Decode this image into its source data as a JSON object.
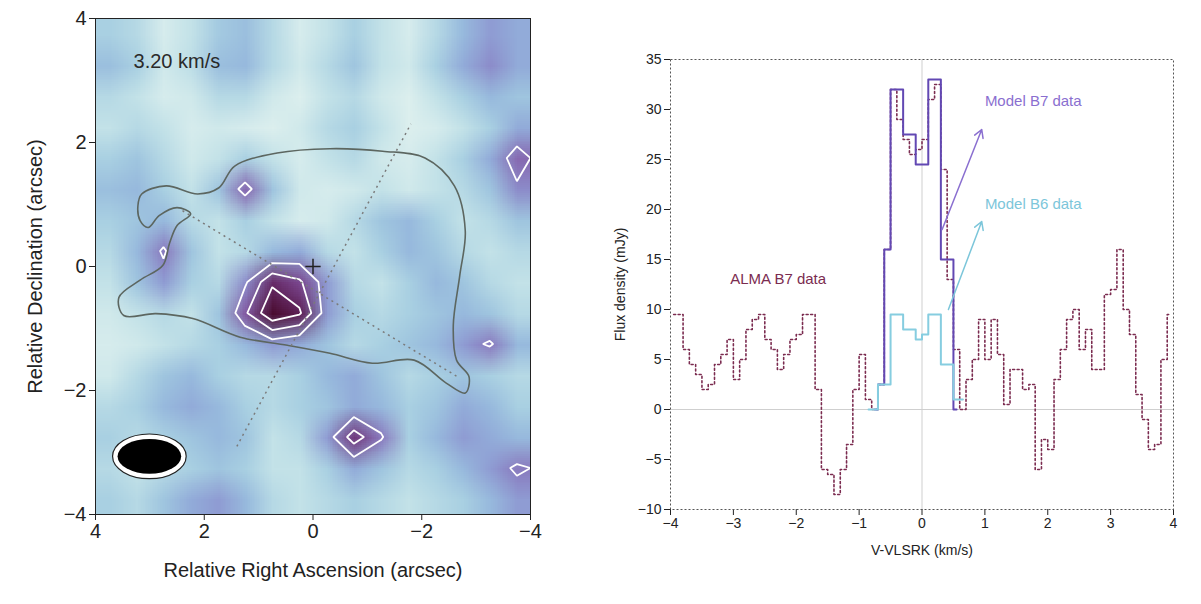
{
  "chart_data": [
    {
      "type": "heatmap",
      "x_label": "Relative Right Ascension (arcsec)",
      "y_label": "Relative Declination (arcsec)",
      "xlim": [
        4,
        -4
      ],
      "ylim": [
        -4,
        4
      ],
      "xticks": [
        4,
        2,
        0,
        -2,
        -4
      ],
      "yticks": [
        -4,
        -2,
        0,
        2,
        4
      ],
      "annotations": [
        {
          "text": "3.20 km/s",
          "x": 3.3,
          "y": 3.3,
          "color": "#2a2a2a"
        }
      ],
      "map": {
        "width": 16,
        "height": 16,
        "x": [
          4,
          -4
        ],
        "y": [
          4,
          -4
        ],
        "range": [
          0,
          4
        ],
        "values": [
          [
            1.2,
            1.0,
            0.5,
            0.8,
            1.3,
            1.5,
            1.0,
            0.5,
            0.8,
            1.2,
            0.8,
            0.5,
            1.0,
            1.6,
            2.0,
            1.8
          ],
          [
            1.5,
            1.2,
            0.6,
            0.9,
            1.5,
            1.6,
            1.0,
            0.6,
            1.0,
            1.4,
            0.8,
            0.6,
            1.2,
            1.8,
            2.2,
            1.8
          ],
          [
            1.0,
            0.8,
            0.5,
            0.6,
            1.0,
            1.0,
            0.6,
            0.4,
            0.8,
            1.0,
            0.6,
            0.4,
            0.8,
            1.2,
            1.6,
            1.4
          ],
          [
            0.8,
            1.0,
            0.8,
            0.5,
            0.6,
            0.5,
            0.4,
            0.6,
            1.0,
            1.2,
            0.8,
            0.4,
            0.5,
            0.8,
            1.2,
            1.8
          ],
          [
            1.2,
            1.4,
            1.0,
            0.6,
            0.8,
            1.2,
            0.8,
            0.5,
            0.8,
            1.0,
            0.6,
            0.5,
            0.8,
            1.2,
            1.8,
            2.6
          ],
          [
            1.5,
            1.6,
            1.2,
            0.8,
            1.4,
            2.6,
            1.4,
            0.6,
            0.5,
            0.6,
            0.8,
            0.6,
            0.8,
            1.0,
            1.4,
            2.2
          ],
          [
            1.2,
            1.4,
            1.6,
            1.0,
            0.8,
            1.2,
            0.8,
            0.5,
            0.6,
            1.0,
            1.4,
            1.6,
            1.2,
            0.8,
            1.0,
            1.4
          ],
          [
            1.0,
            1.6,
            2.4,
            1.4,
            0.8,
            1.0,
            1.6,
            1.8,
            1.0,
            0.8,
            1.2,
            1.6,
            1.4,
            1.0,
            0.8,
            1.0
          ],
          [
            0.8,
            1.4,
            2.0,
            1.2,
            1.0,
            2.2,
            3.4,
            3.0,
            2.0,
            1.0,
            0.8,
            1.2,
            1.6,
            1.4,
            1.0,
            0.8
          ],
          [
            0.6,
            0.8,
            1.0,
            0.8,
            1.4,
            2.8,
            4.0,
            3.6,
            2.0,
            1.2,
            1.0,
            1.2,
            1.4,
            1.6,
            1.4,
            1.0
          ],
          [
            0.5,
            0.6,
            0.8,
            1.0,
            1.2,
            1.6,
            2.0,
            1.8,
            1.4,
            1.0,
            1.2,
            1.4,
            1.6,
            2.0,
            2.4,
            1.6
          ],
          [
            0.6,
            1.0,
            1.4,
            1.6,
            1.2,
            1.0,
            1.0,
            1.2,
            1.6,
            1.8,
            1.4,
            1.0,
            1.2,
            1.4,
            1.2,
            1.0
          ],
          [
            1.0,
            1.2,
            1.6,
            1.8,
            1.6,
            1.2,
            1.0,
            1.2,
            1.4,
            1.8,
            1.6,
            1.2,
            1.4,
            1.8,
            1.6,
            1.2
          ],
          [
            1.2,
            1.0,
            1.2,
            1.4,
            1.6,
            1.4,
            0.8,
            1.0,
            2.0,
            3.2,
            2.4,
            1.2,
            1.6,
            2.0,
            1.8,
            1.6
          ],
          [
            1.0,
            0.8,
            1.0,
            1.2,
            1.4,
            1.2,
            0.8,
            0.8,
            1.2,
            1.8,
            1.4,
            1.0,
            1.2,
            1.6,
            2.0,
            2.4
          ],
          [
            1.2,
            1.0,
            1.4,
            1.8,
            2.0,
            1.6,
            1.0,
            0.8,
            1.0,
            1.2,
            1.0,
            0.8,
            1.0,
            1.2,
            1.6,
            2.0
          ]
        ]
      },
      "contour_levels": [
        2.3,
        2.9,
        3.5
      ],
      "outline": [
        [
          3.18,
          0.74
        ],
        [
          3.22,
          0.98
        ],
        [
          3.15,
          1.17
        ],
        [
          2.7,
          1.3
        ],
        [
          2.12,
          1.17
        ],
        [
          1.73,
          1.27
        ],
        [
          1.44,
          1.62
        ],
        [
          0.66,
          1.83
        ],
        [
          -0.31,
          1.9
        ],
        [
          -1.28,
          1.86
        ],
        [
          -2.06,
          1.75
        ],
        [
          -2.6,
          1.3
        ],
        [
          -2.8,
          0.58
        ],
        [
          -2.7,
          -0.14
        ],
        [
          -2.58,
          -0.95
        ],
        [
          -2.64,
          -1.51
        ],
        [
          -2.87,
          -1.78
        ],
        [
          -2.8,
          -2.04
        ],
        [
          -2.45,
          -1.88
        ],
        [
          -1.86,
          -1.51
        ],
        [
          -1.09,
          -1.56
        ],
        [
          -0.31,
          -1.4
        ],
        [
          0.47,
          -1.27
        ],
        [
          1.34,
          -1.14
        ],
        [
          2.21,
          -0.84
        ],
        [
          2.89,
          -0.76
        ],
        [
          3.48,
          -0.79
        ],
        [
          3.57,
          -0.5
        ],
        [
          3.18,
          -0.22
        ],
        [
          2.76,
          0.02
        ],
        [
          2.64,
          0.37
        ],
        [
          2.5,
          0.66
        ],
        [
          2.25,
          0.85
        ],
        [
          2.5,
          0.95
        ],
        [
          2.83,
          0.82
        ],
        [
          3.03,
          0.63
        ]
      ],
      "axis_lines": [
        [
          [
            1.4,
            -2.9
          ],
          [
            -1.8,
            2.3
          ]
        ],
        [
          [
            2.4,
            0.9
          ],
          [
            -2.7,
            -1.8
          ]
        ]
      ],
      "center": [
        0,
        0
      ],
      "beam": {
        "x": 3.0,
        "y": -3.07,
        "major": 1.17,
        "minor": 0.56
      }
    },
    {
      "type": "line",
      "x_label": "V-VLSRK (km/s)",
      "y_label": "Flux density (mJy)",
      "xlim": [
        -4,
        4
      ],
      "ylim": [
        -10,
        35
      ],
      "xticks": [
        -4,
        -3,
        -2,
        -1,
        0,
        1,
        2,
        3,
        4
      ],
      "yticks": [
        -10,
        -5,
        0,
        5,
        10,
        15,
        20,
        25,
        30,
        35
      ],
      "rules": {
        "x": [
          0
        ],
        "y": [
          0
        ]
      },
      "series": [
        {
          "name": "ALMA B7 data",
          "color": "#7b2c50",
          "line_style": "dotted",
          "x": [
            -3.95,
            -3.85,
            -3.75,
            -3.65,
            -3.55,
            -3.45,
            -3.35,
            -3.25,
            -3.15,
            -3.05,
            -2.95,
            -2.85,
            -2.75,
            -2.65,
            -2.55,
            -2.45,
            -2.35,
            -2.25,
            -2.15,
            -2.05,
            -1.95,
            -1.85,
            -1.75,
            -1.65,
            -1.55,
            -1.45,
            -1.35,
            -1.25,
            -1.15,
            -1.05,
            -0.95,
            -0.85,
            -0.75,
            -0.65,
            -0.55,
            -0.45,
            -0.35,
            -0.25,
            -0.15,
            -0.05,
            0.05,
            0.15,
            0.25,
            0.35,
            0.45,
            0.55,
            0.65,
            0.75,
            0.85,
            0.95,
            1.05,
            1.15,
            1.25,
            1.35,
            1.45,
            1.55,
            1.65,
            1.75,
            1.85,
            1.95,
            2.05,
            2.15,
            2.25,
            2.35,
            2.45,
            2.55,
            2.65,
            2.75,
            2.85,
            2.95,
            3.05,
            3.15,
            3.25,
            3.35,
            3.45,
            3.55,
            3.65,
            3.75,
            3.85,
            3.95
          ],
          "values": [
            9.5,
            9.5,
            6,
            4.5,
            3.5,
            2,
            2.5,
            4.5,
            5.5,
            7,
            3,
            5,
            8,
            9,
            9.5,
            7,
            6,
            4,
            5.5,
            7,
            7.5,
            9.5,
            9.5,
            2,
            -6,
            -6.5,
            -8.5,
            -6,
            -3.5,
            2,
            5.5,
            1,
            0,
            2.5,
            16,
            32,
            29,
            27,
            25.5,
            26,
            27,
            31,
            32.5,
            24,
            13,
            6,
            0,
            3,
            5,
            9,
            5,
            9,
            5.5,
            0.5,
            4,
            4,
            2,
            2.5,
            -6,
            -3,
            -4,
            3,
            6,
            9,
            10,
            6,
            8,
            4,
            4,
            11.5,
            12,
            16,
            10,
            7.5,
            1.5,
            -1,
            -4,
            -3.5,
            5,
            9.5
          ]
        },
        {
          "name": "Model B7 data",
          "color": "#6248b3",
          "line_style": "solid",
          "x": [
            -0.75,
            -0.65,
            -0.55,
            -0.45,
            -0.35,
            -0.25,
            -0.15,
            -0.05,
            0.05,
            0.15,
            0.25,
            0.35,
            0.45,
            0.55
          ],
          "values": [
            0,
            2.5,
            16,
            32,
            32,
            27.5,
            27.5,
            24.5,
            24.5,
            33,
            33,
            15,
            15,
            0
          ]
        },
        {
          "name": "Model B6 data",
          "color": "#86cde0",
          "line_style": "solid",
          "x": [
            -0.85,
            -0.75,
            -0.65,
            -0.55,
            -0.45,
            -0.35,
            -0.25,
            -0.15,
            -0.05,
            0.05,
            0.15,
            0.25,
            0.35,
            0.45,
            0.55,
            0.65
          ],
          "values": [
            0,
            0,
            2.5,
            2.5,
            9.5,
            9.5,
            8,
            8,
            7,
            7.5,
            9.5,
            9.5,
            4.5,
            4.5,
            1,
            1
          ]
        }
      ],
      "annotations": [
        {
          "text": "ALMA B7 data",
          "x": -3.05,
          "y": 13,
          "color": "#7b2c50"
        },
        {
          "text": "Model B7 data",
          "x": 1.0,
          "y": 30.8,
          "color": "#8a6fd0",
          "arrow": [
            [
              0.32,
              18
            ],
            [
              0.95,
              28
            ]
          ]
        },
        {
          "text": "Model B6 data",
          "x": 1.0,
          "y": 20.5,
          "color": "#7cc6da",
          "arrow": [
            [
              0.42,
              10
            ],
            [
              0.95,
              18.8
            ]
          ]
        }
      ]
    }
  ]
}
